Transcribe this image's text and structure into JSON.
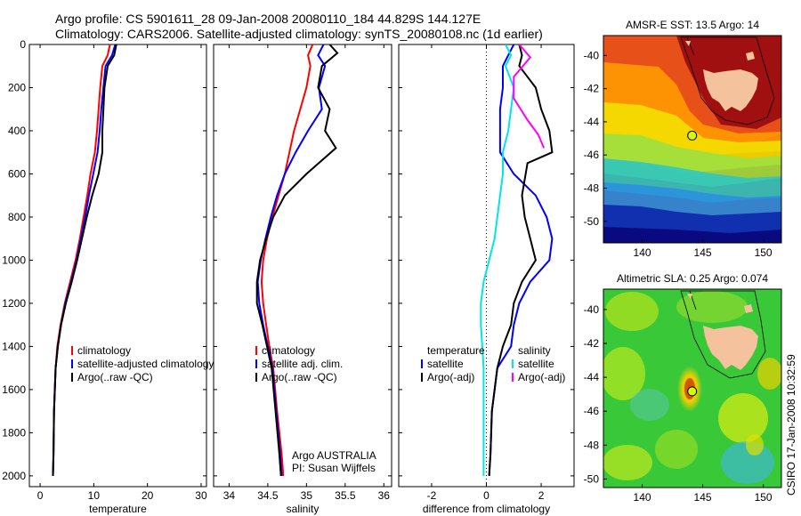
{
  "header": {
    "line1": "Argo profile: CS 5901611_28 09-Jan-2008 20080110_184 44.829S 144.127E",
    "line2": "Climatology: CARS2006. Satellite-adjusted climatology: synTS_20080108.nc (1d earlier)"
  },
  "side_label": "CSIRO 17-Jan-2008 10:32:59",
  "colors": {
    "climatology": "#ff0000",
    "satellite": "#0000ff",
    "argo": "#000000",
    "sal_satellite": "#00e5e5",
    "sal_argo": "#ff00ff",
    "land": "#f4c29c"
  },
  "chart_data": [
    {
      "id": "temperature",
      "type": "line",
      "xlabel": "temperature",
      "ylabel": "",
      "xlim": [
        -2,
        31
      ],
      "ylim": [
        0,
        2050
      ],
      "y_reversed": true,
      "xticks": [
        0,
        10,
        20,
        30
      ],
      "yticks": [
        0,
        200,
        400,
        600,
        800,
        1000,
        1200,
        1400,
        1600,
        1800,
        2000
      ],
      "legend": [
        "climatology",
        "satellite-adjusted climatology",
        "Argo(..raw -QC)"
      ],
      "legend_position": "lower-right",
      "series": [
        {
          "name": "climatology",
          "color": "#ff0000",
          "x": [
            13.0,
            12.6,
            11.6,
            11.2,
            10.9,
            10.6,
            10.2,
            9.4,
            8.8,
            8.1,
            7.4,
            6.6,
            5.6,
            4.6,
            3.8,
            3.2,
            2.9,
            2.6,
            2.5,
            2.4
          ],
          "y": [
            0,
            50,
            100,
            200,
            300,
            400,
            500,
            600,
            700,
            800,
            900,
            1000,
            1100,
            1200,
            1300,
            1400,
            1500,
            1700,
            1900,
            2000
          ]
        },
        {
          "name": "satellite-adjusted climatology",
          "color": "#0000ff",
          "x": [
            14.0,
            13.4,
            12.2,
            11.8,
            11.4,
            11.1,
            10.7,
            9.9,
            9.1,
            8.4,
            7.6,
            6.8,
            5.8,
            4.7,
            3.9,
            3.3,
            2.9,
            2.6,
            2.5,
            2.4
          ],
          "y": [
            0,
            50,
            100,
            200,
            300,
            400,
            500,
            600,
            700,
            800,
            900,
            1000,
            1100,
            1200,
            1300,
            1400,
            1500,
            1700,
            1900,
            2000
          ]
        },
        {
          "name": "Argo(..raw -QC)",
          "color": "#000000",
          "x": [
            14.2,
            13.8,
            12.6,
            12.0,
            11.8,
            11.6,
            11.6,
            10.9,
            9.7,
            8.7,
            7.8,
            6.9,
            5.9,
            4.8,
            3.9,
            3.3,
            2.9,
            2.6,
            2.5,
            2.4
          ],
          "y": [
            0,
            50,
            100,
            200,
            300,
            400,
            500,
            600,
            700,
            800,
            900,
            1000,
            1100,
            1200,
            1300,
            1400,
            1500,
            1700,
            1900,
            2000
          ]
        }
      ]
    },
    {
      "id": "salinity",
      "type": "line",
      "xlabel": "salinity",
      "ylabel": "",
      "xlim": [
        33.8,
        36.1
      ],
      "ylim": [
        0,
        2050
      ],
      "y_reversed": true,
      "xticks": [
        34,
        34.5,
        35,
        35.5,
        36
      ],
      "yticks": [
        0,
        200,
        400,
        600,
        800,
        1000,
        1200,
        1400,
        1600,
        1800,
        2000
      ],
      "legend": [
        "climatology",
        "satellite adj. clim.",
        "Argo(..raw -QC)"
      ],
      "legend_position": "lower-right",
      "annotations": [
        "Argo AUSTRALIA",
        "PI: Susan Wijffels"
      ],
      "series": [
        {
          "name": "climatology",
          "color": "#ff0000",
          "x": [
            35.08,
            35.02,
            35.05,
            35.0,
            34.92,
            34.84,
            34.78,
            34.72,
            34.64,
            34.56,
            34.49,
            34.44,
            34.42,
            34.44,
            34.48,
            34.52,
            34.57,
            34.62,
            34.68,
            34.7
          ],
          "y": [
            0,
            50,
            100,
            200,
            300,
            400,
            500,
            600,
            700,
            800,
            900,
            1000,
            1100,
            1200,
            1300,
            1400,
            1500,
            1700,
            1900,
            2000
          ]
        },
        {
          "name": "satellite adj. clim.",
          "color": "#0000ff",
          "x": [
            35.22,
            35.15,
            35.24,
            35.16,
            35.2,
            35.02,
            34.86,
            34.72,
            34.62,
            34.54,
            34.47,
            34.41,
            34.37,
            34.39,
            34.44,
            34.5,
            34.56,
            34.61,
            34.66,
            34.68
          ],
          "y": [
            0,
            50,
            100,
            200,
            300,
            400,
            500,
            600,
            700,
            800,
            900,
            1000,
            1100,
            1200,
            1300,
            1400,
            1500,
            1700,
            1900,
            2000
          ]
        },
        {
          "name": "Argo(..raw -QC)",
          "color": "#000000",
          "x": [
            35.3,
            35.4,
            35.2,
            35.15,
            35.3,
            35.24,
            35.38,
            35.0,
            34.72,
            34.57,
            34.48,
            34.4,
            34.36,
            34.36,
            34.43,
            34.49,
            34.55,
            34.6,
            34.65,
            34.67
          ],
          "y": [
            0,
            40,
            100,
            200,
            300,
            400,
            480,
            600,
            700,
            800,
            900,
            1000,
            1100,
            1200,
            1300,
            1400,
            1500,
            1700,
            1900,
            2000
          ]
        }
      ]
    },
    {
      "id": "difference",
      "type": "line",
      "xlabel": "difference from climatology",
      "ylabel": "",
      "xlim": [
        -3.2,
        3.2
      ],
      "ylim": [
        0,
        2050
      ],
      "y_reversed": true,
      "xticks": [
        -2,
        0,
        2
      ],
      "yticks": [
        0,
        200,
        400,
        600,
        800,
        1000,
        1200,
        1400,
        1600,
        1800,
        2000
      ],
      "legend_temperature": [
        "temperature",
        "satellite",
        "Argo(-adj)"
      ],
      "legend_salinity": [
        "salinity",
        "satellite",
        "Argo(-adj)"
      ],
      "legend_position": "lower",
      "series": [
        {
          "name": "temperature satellite",
          "color": "#0000ff",
          "x": [
            1.0,
            0.8,
            0.6,
            0.6,
            0.5,
            0.5,
            0.5,
            1.0,
            1.8,
            2.2,
            2.4,
            2.3,
            1.6,
            1.2,
            1.0,
            0.9,
            0.4,
            0.2,
            0.15,
            0.1
          ],
          "y": [
            0,
            50,
            100,
            200,
            300,
            400,
            500,
            600,
            700,
            800,
            900,
            1000,
            1100,
            1200,
            1300,
            1400,
            1500,
            1700,
            1900,
            2000
          ]
        },
        {
          "name": "temperature Argo(-adj)",
          "color": "#000000",
          "x": [
            1.2,
            1.3,
            1.2,
            1.8,
            2.0,
            2.3,
            2.4,
            1.5,
            1.3,
            1.4,
            1.6,
            1.8,
            1.3,
            1.0,
            0.9,
            0.6,
            0.4,
            0.2,
            0.15,
            0.1
          ],
          "y": [
            0,
            50,
            100,
            200,
            300,
            400,
            500,
            550,
            700,
            800,
            900,
            1000,
            1100,
            1200,
            1300,
            1400,
            1500,
            1700,
            1900,
            2000
          ]
        },
        {
          "name": "salinity satellite",
          "color": "#00e5e5",
          "x": [
            0.7,
            0.9,
            0.7,
            1.0,
            0.9,
            0.8,
            0.6,
            0.6,
            0.5,
            0.4,
            0.3,
            0.1,
            -0.1,
            -0.2,
            -0.2,
            -0.15,
            -0.1,
            -0.1,
            -0.1,
            -0.1
          ],
          "y": [
            0,
            50,
            100,
            200,
            300,
            400,
            500,
            600,
            700,
            800,
            900,
            1000,
            1100,
            1200,
            1300,
            1400,
            1500,
            1700,
            1900,
            2000
          ]
        },
        {
          "name": "salinity Argo(-adj)",
          "color": "#ff00ff",
          "x": [
            1.2,
            1.6,
            1.0,
            1.0,
            1.5,
            1.9,
            2.1
          ],
          "y": [
            0,
            60,
            150,
            250,
            350,
            420,
            480
          ]
        }
      ]
    },
    {
      "id": "sst_map",
      "type": "heatmap",
      "title": "AMSR-E SST: 13.5 Argo: 14",
      "xlim": [
        136.8,
        151.5
      ],
      "ylim": [
        -51.3,
        -38.8
      ],
      "xticks": [
        140,
        145,
        150
      ],
      "yticks": [
        -40,
        -42,
        -44,
        -46,
        -48,
        -50
      ],
      "argo_position": [
        144.127,
        -44.829
      ]
    },
    {
      "id": "sla_map",
      "type": "heatmap",
      "title": "Altimetric SLA: 0.25 Argo: 0.074",
      "xlim": [
        136.8,
        151.5
      ],
      "ylim": [
        -50.5,
        -38.8
      ],
      "xticks": [
        140,
        145,
        150
      ],
      "yticks": [
        -40,
        -42,
        -44,
        -46,
        -48,
        -50
      ],
      "argo_position": [
        144.127,
        -44.829
      ]
    }
  ]
}
